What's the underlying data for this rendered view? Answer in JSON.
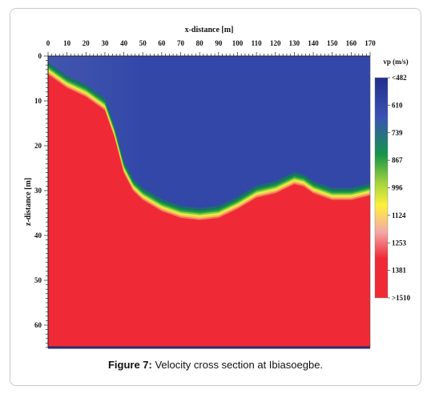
{
  "chart_data": {
    "type": "heatmap",
    "xlabel": "x-distance [m]",
    "ylabel": "z-distance [m]",
    "xlim": [
      0,
      170
    ],
    "ylim": [
      0,
      65
    ],
    "x_ticks": [
      "0",
      "10",
      "20",
      "30",
      "40",
      "50",
      "60",
      "70",
      "80",
      "90",
      "100",
      "110",
      "120",
      "130",
      "140",
      "150",
      "160",
      "170"
    ],
    "y_ticks": [
      "0",
      "10",
      "20",
      "30",
      "40",
      "50",
      "60"
    ],
    "colorbar": {
      "title": "vp (m/s)",
      "labels": [
        "<482",
        "610",
        "739",
        "867",
        "996",
        "1124",
        "1253",
        "1381",
        ">1510"
      ],
      "colors": [
        "#232f8c",
        "#3a52b4",
        "#15954a",
        "#a5d43c",
        "#fff03c",
        "#f5a8a8",
        "#ef2a36",
        "#ef2a36",
        "#ef2a36"
      ]
    },
    "boundary": {
      "name": "velocity interface",
      "x": [
        0,
        10,
        20,
        30,
        35,
        40,
        45,
        50,
        60,
        70,
        80,
        90,
        100,
        110,
        120,
        130,
        135,
        140,
        150,
        160,
        170
      ],
      "depth": [
        3,
        6,
        8,
        11,
        17,
        25,
        29,
        31,
        33.5,
        35,
        35.5,
        35,
        33,
        30.5,
        29.5,
        27.5,
        28,
        29.5,
        31,
        31,
        30
      ]
    },
    "colors": {
      "low": "#3247a8",
      "high": "#ef2a36",
      "transition_mid": "#15954a"
    }
  },
  "caption": {
    "prefix": "Figure 7:",
    "text": " Velocity cross section at Ibiasoegbe."
  }
}
